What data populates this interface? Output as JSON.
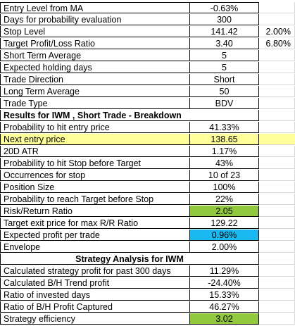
{
  "rows1": [
    {
      "label": "Entry Level from MA",
      "value": "-0.63%",
      "extra": ""
    },
    {
      "label": "Days for probability evaluation",
      "value": "300",
      "extra": ""
    },
    {
      "label": "Stop Level",
      "value": "141.42",
      "extra": "2.00%"
    },
    {
      "label": "Target Profit/Loss Ratio",
      "value": "3.40",
      "extra": "6.80%"
    },
    {
      "label": "Short Term Average",
      "value": "5",
      "extra": ""
    },
    {
      "label": "Expected holding days",
      "value": "5",
      "extra": ""
    },
    {
      "label": "Trade Direction",
      "value": "Short",
      "extra": ""
    },
    {
      "label": "Long Term Average",
      "value": "50",
      "extra": ""
    },
    {
      "label": "Trade Type",
      "value": "BDV",
      "extra": ""
    }
  ],
  "header1": "Results for IWM , Short Trade - Breakdown",
  "rows2": [
    {
      "label": "Probability to hit entry price",
      "value": "41.33%"
    },
    {
      "label": "Next entry price",
      "value": "138.65"
    },
    {
      "label": "20D ATR",
      "value": "1.17%"
    },
    {
      "label": "Probability to hit Stop before Target",
      "value": "43%"
    },
    {
      "label": "Occurrences for stop",
      "value": "10 of 23"
    },
    {
      "label": "Position Size",
      "value": "100%"
    },
    {
      "label": "Probability to reach Target before Stop",
      "value": "22%"
    },
    {
      "label": "Risk/Return Ratio",
      "value": "2.05"
    },
    {
      "label": "Target exit price for max R/R Ratio",
      "value": "129.22"
    },
    {
      "label": "Expected profit per trade",
      "value": "0.96%"
    },
    {
      "label": "Envelope",
      "value": "2.00%"
    }
  ],
  "header2": "Strategy Analysis for IWM",
  "rows3": [
    {
      "label": "Calculated strategy profit for past 300 days",
      "value": "11.29%"
    },
    {
      "label": "Calculated B/H Trend profit",
      "value": "-24.40%"
    },
    {
      "label": "Ratio of invested days",
      "value": "15.33%"
    },
    {
      "label": "Ratio of B/H Profit Captured",
      "value": "46.27%"
    },
    {
      "label": "Strategy efficiency",
      "value": "3.02"
    }
  ],
  "colors": {
    "highlight_yellow": "#ffff99",
    "cell_green": "#92c83e",
    "cell_blue": "#1ab8f0"
  }
}
